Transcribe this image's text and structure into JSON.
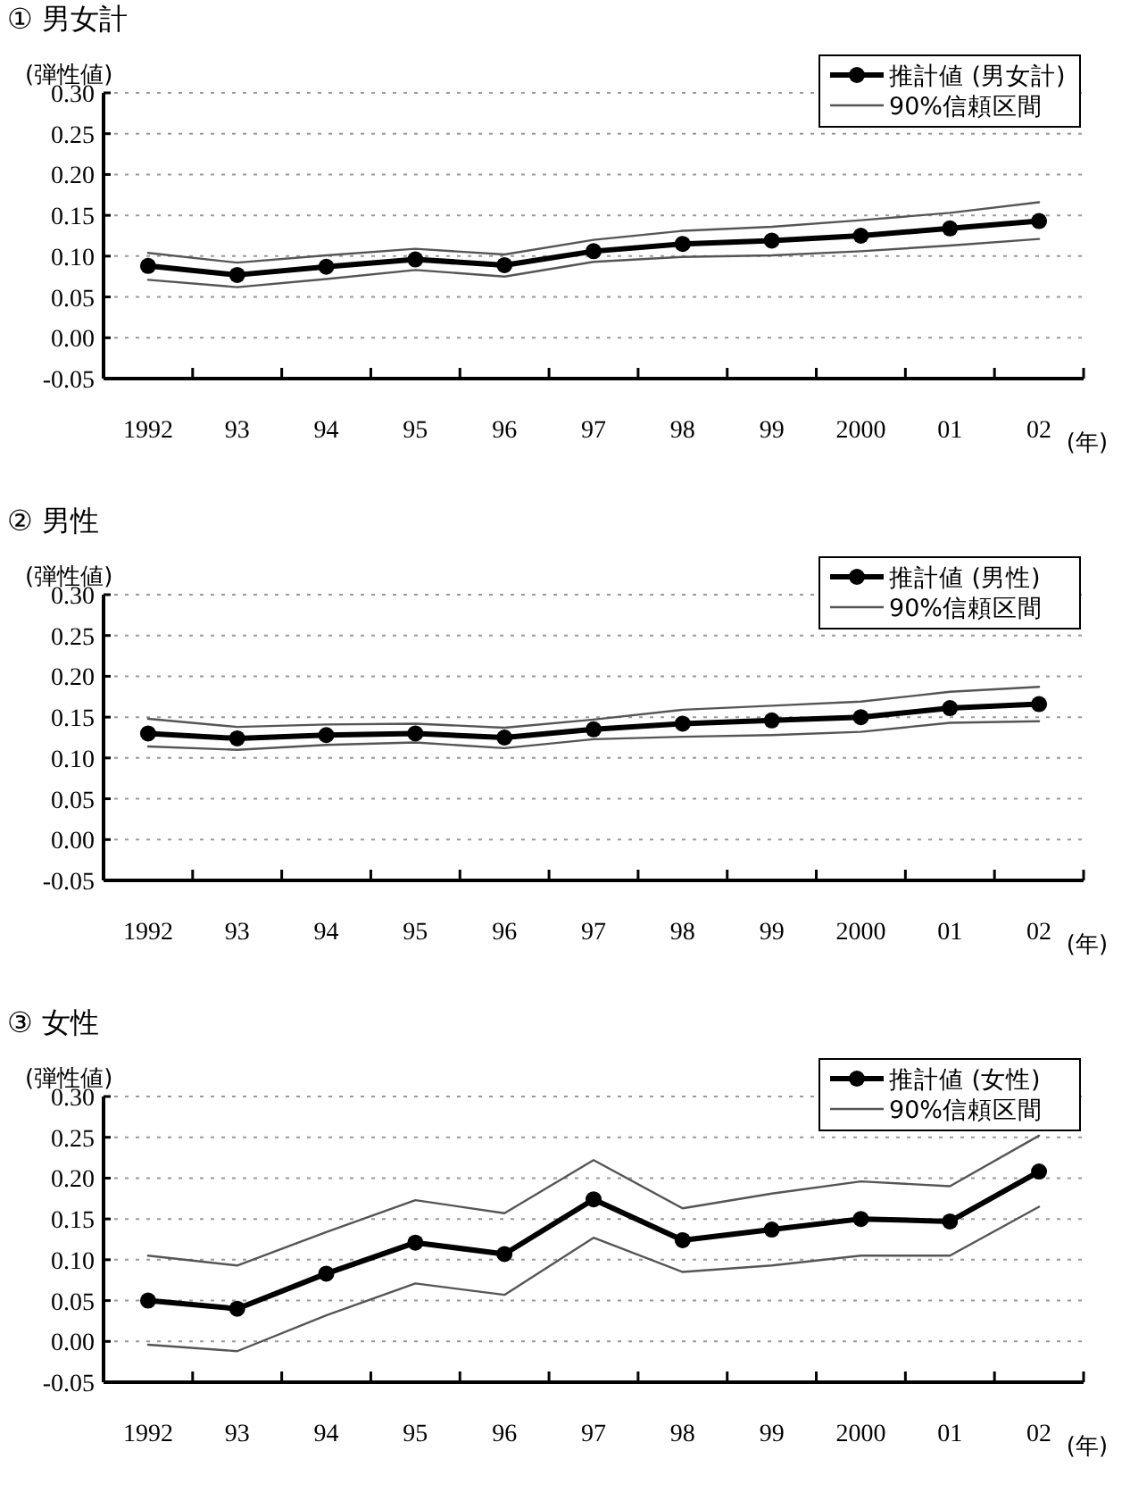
{
  "chart_data": [
    {
      "type": "line",
      "title": "① 男女計",
      "ylabel": "(弾性値)",
      "xlabel": "(年)",
      "categories": [
        "1992",
        "93",
        "94",
        "95",
        "96",
        "97",
        "98",
        "99",
        "2000",
        "01",
        "02"
      ],
      "ylim": [
        -0.05,
        0.3
      ],
      "yticks": [
        {
          "value": -0.05,
          "label": "-0.05"
        },
        {
          "value": 0,
          "label": "0.00"
        },
        {
          "value": 0.05,
          "label": "0.05"
        },
        {
          "value": 0.1,
          "label": "0.10"
        },
        {
          "value": 0.15,
          "label": "0.15"
        },
        {
          "value": 0.2,
          "label": "0.20"
        },
        {
          "value": 0.25,
          "label": "0.25"
        },
        {
          "value": 0.3,
          "label": "0.30"
        }
      ],
      "grid": "y",
      "legend": "top right",
      "series": [
        {
          "name": "推計値 (男女計)",
          "color": "#000000",
          "marker": "circle",
          "values": [
            0.088,
            0.077,
            0.087,
            0.096,
            0.089,
            0.106,
            0.115,
            0.119,
            0.125,
            0.134,
            0.143
          ]
        },
        {
          "name": "90%信頼区間",
          "color": "#555555",
          "marker": "none",
          "values": [
            0.104,
            0.092,
            0.101,
            0.109,
            0.102,
            0.12,
            0.131,
            0.136,
            0.144,
            0.153,
            0.166
          ]
        },
        {
          "color": "#555555",
          "marker": "none",
          "values": [
            0.071,
            0.062,
            0.072,
            0.083,
            0.075,
            0.093,
            0.099,
            0.101,
            0.106,
            0.113,
            0.121
          ]
        }
      ]
    },
    {
      "type": "line",
      "title": "② 男性",
      "ylabel": "(弾性値)",
      "xlabel": "(年)",
      "categories": [
        "1992",
        "93",
        "94",
        "95",
        "96",
        "97",
        "98",
        "99",
        "2000",
        "01",
        "02"
      ],
      "ylim": [
        -0.05,
        0.3
      ],
      "yticks": [
        {
          "value": -0.05,
          "label": "-0.05"
        },
        {
          "value": 0,
          "label": "0.00"
        },
        {
          "value": 0.05,
          "label": "0.05"
        },
        {
          "value": 0.1,
          "label": "0.10"
        },
        {
          "value": 0.15,
          "label": "0.15"
        },
        {
          "value": 0.2,
          "label": "0.20"
        },
        {
          "value": 0.25,
          "label": "0.25"
        },
        {
          "value": 0.3,
          "label": "0.30"
        }
      ],
      "grid": "y",
      "legend": "top right",
      "series": [
        {
          "name": "推計値 (男性)",
          "color": "#000000",
          "marker": "circle",
          "values": [
            0.13,
            0.124,
            0.128,
            0.13,
            0.125,
            0.135,
            0.142,
            0.146,
            0.15,
            0.161,
            0.166
          ]
        },
        {
          "name": "90%信頼区間",
          "color": "#555555",
          "marker": "none",
          "values": [
            0.148,
            0.138,
            0.141,
            0.142,
            0.137,
            0.147,
            0.159,
            0.164,
            0.169,
            0.181,
            0.187
          ]
        },
        {
          "color": "#555555",
          "marker": "none",
          "values": [
            0.114,
            0.11,
            0.116,
            0.119,
            0.112,
            0.123,
            0.126,
            0.128,
            0.132,
            0.143,
            0.145
          ]
        }
      ]
    },
    {
      "type": "line",
      "title": "③ 女性",
      "ylabel": "(弾性値)",
      "xlabel": "(年)",
      "categories": [
        "1992",
        "93",
        "94",
        "95",
        "96",
        "97",
        "98",
        "99",
        "2000",
        "01",
        "02"
      ],
      "ylim": [
        -0.05,
        0.3
      ],
      "yticks": [
        {
          "value": -0.05,
          "label": "-0.05"
        },
        {
          "value": 0,
          "label": "0.00"
        },
        {
          "value": 0.05,
          "label": "0.05"
        },
        {
          "value": 0.1,
          "label": "0.10"
        },
        {
          "value": 0.15,
          "label": "0.15"
        },
        {
          "value": 0.2,
          "label": "0.20"
        },
        {
          "value": 0.25,
          "label": "0.25"
        },
        {
          "value": 0.3,
          "label": "0.30"
        }
      ],
      "grid": "y",
      "legend": "top right",
      "series": [
        {
          "name": "推計値 (女性)",
          "color": "#000000",
          "marker": "circle",
          "values": [
            0.05,
            0.04,
            0.083,
            0.121,
            0.107,
            0.174,
            0.124,
            0.137,
            0.15,
            0.147,
            0.208
          ]
        },
        {
          "name": "90%信頼区間",
          "color": "#555555",
          "marker": "none",
          "values": [
            0.105,
            0.093,
            0.134,
            0.173,
            0.157,
            0.222,
            0.163,
            0.181,
            0.196,
            0.19,
            0.252
          ]
        },
        {
          "color": "#555555",
          "marker": "none",
          "values": [
            -0.004,
            -0.012,
            0.032,
            0.071,
            0.057,
            0.127,
            0.085,
            0.093,
            0.105,
            0.105,
            0.165
          ]
        }
      ]
    }
  ]
}
